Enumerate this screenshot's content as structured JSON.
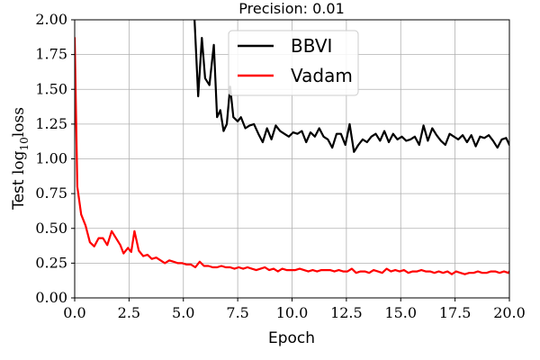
{
  "chart_data": {
    "type": "line",
    "title": "Precision: 0.01",
    "xlabel": "Epoch",
    "ylabel": {
      "prefix": "Test ",
      "log_base": "log",
      "log_sub": "10",
      "suffix": "loss"
    },
    "xlim": [
      0.0,
      20.0
    ],
    "ylim": [
      0.0,
      2.0
    ],
    "xticks": [
      0.0,
      2.5,
      5.0,
      7.5,
      10.0,
      12.5,
      15.0,
      17.5,
      20.0
    ],
    "xtick_labels": [
      "0.0",
      "2.5",
      "5.0",
      "7.5",
      "10.0",
      "12.5",
      "15.0",
      "17.5",
      "20.0"
    ],
    "yticks": [
      0.0,
      0.25,
      0.5,
      0.75,
      1.0,
      1.25,
      1.5,
      1.75,
      2.0
    ],
    "ytick_labels": [
      "0.00",
      "0.25",
      "0.50",
      "0.75",
      "1.00",
      "1.25",
      "1.50",
      "1.75",
      "2.00"
    ],
    "grid": true,
    "legend_position": "top-center",
    "series": [
      {
        "name": "BBVI",
        "color": "#000000",
        "x": [
          5.5,
          5.68,
          5.85,
          6.0,
          6.2,
          6.4,
          6.55,
          6.7,
          6.85,
          7.0,
          7.15,
          7.3,
          7.5,
          7.65,
          7.85,
          8.05,
          8.25,
          8.45,
          8.65,
          8.85,
          9.05,
          9.25,
          9.45,
          9.65,
          9.85,
          10.05,
          10.25,
          10.45,
          10.65,
          10.85,
          11.05,
          11.25,
          11.45,
          11.65,
          11.85,
          12.05,
          12.25,
          12.45,
          12.65,
          12.85,
          13.05,
          13.25,
          13.45,
          13.65,
          13.85,
          14.05,
          14.25,
          14.45,
          14.65,
          14.85,
          15.05,
          15.25,
          15.45,
          15.65,
          15.85,
          16.05,
          16.25,
          16.45,
          16.65,
          16.85,
          17.05,
          17.25,
          17.45,
          17.65,
          17.85,
          18.05,
          18.25,
          18.45,
          18.65,
          18.85,
          19.05,
          19.25,
          19.45,
          19.65,
          19.85,
          20.0
        ],
        "y": [
          2.05,
          1.45,
          1.87,
          1.58,
          1.53,
          1.82,
          1.3,
          1.35,
          1.2,
          1.25,
          1.52,
          1.3,
          1.27,
          1.3,
          1.22,
          1.24,
          1.25,
          1.18,
          1.12,
          1.22,
          1.14,
          1.24,
          1.2,
          1.18,
          1.16,
          1.19,
          1.18,
          1.2,
          1.12,
          1.19,
          1.16,
          1.22,
          1.16,
          1.14,
          1.08,
          1.18,
          1.18,
          1.1,
          1.25,
          1.05,
          1.1,
          1.14,
          1.12,
          1.16,
          1.18,
          1.13,
          1.2,
          1.12,
          1.18,
          1.14,
          1.16,
          1.13,
          1.14,
          1.16,
          1.1,
          1.24,
          1.13,
          1.22,
          1.17,
          1.13,
          1.1,
          1.18,
          1.16,
          1.14,
          1.17,
          1.12,
          1.17,
          1.09,
          1.16,
          1.15,
          1.17,
          1.13,
          1.08,
          1.14,
          1.15,
          1.1
        ]
      },
      {
        "name": "Vadam",
        "color": "#ff0000",
        "x": [
          0.0,
          0.12,
          0.3,
          0.5,
          0.7,
          0.9,
          1.1,
          1.3,
          1.5,
          1.7,
          1.9,
          2.1,
          2.25,
          2.45,
          2.6,
          2.75,
          2.95,
          3.15,
          3.35,
          3.55,
          3.75,
          3.95,
          4.15,
          4.35,
          4.55,
          4.75,
          4.95,
          5.15,
          5.35,
          5.55,
          5.75,
          5.95,
          6.15,
          6.35,
          6.55,
          6.75,
          6.95,
          7.15,
          7.35,
          7.55,
          7.75,
          7.95,
          8.15,
          8.35,
          8.55,
          8.75,
          8.95,
          9.15,
          9.35,
          9.55,
          9.75,
          9.95,
          10.15,
          10.35,
          10.55,
          10.75,
          10.95,
          11.15,
          11.35,
          11.55,
          11.75,
          11.95,
          12.15,
          12.35,
          12.55,
          12.75,
          12.95,
          13.15,
          13.35,
          13.55,
          13.75,
          13.95,
          14.15,
          14.35,
          14.55,
          14.75,
          14.95,
          15.15,
          15.35,
          15.55,
          15.75,
          15.95,
          16.15,
          16.35,
          16.55,
          16.75,
          16.95,
          17.15,
          17.35,
          17.55,
          17.75,
          17.95,
          18.15,
          18.35,
          18.55,
          18.75,
          18.95,
          19.15,
          19.35,
          19.55,
          19.75,
          19.95,
          20.0
        ],
        "y": [
          1.87,
          0.8,
          0.6,
          0.52,
          0.4,
          0.37,
          0.43,
          0.43,
          0.38,
          0.48,
          0.43,
          0.38,
          0.32,
          0.36,
          0.33,
          0.48,
          0.34,
          0.3,
          0.31,
          0.28,
          0.29,
          0.27,
          0.25,
          0.27,
          0.26,
          0.25,
          0.25,
          0.24,
          0.24,
          0.22,
          0.26,
          0.23,
          0.23,
          0.22,
          0.22,
          0.23,
          0.22,
          0.22,
          0.21,
          0.22,
          0.21,
          0.22,
          0.21,
          0.2,
          0.21,
          0.22,
          0.2,
          0.21,
          0.19,
          0.21,
          0.2,
          0.2,
          0.2,
          0.21,
          0.2,
          0.19,
          0.2,
          0.19,
          0.2,
          0.2,
          0.2,
          0.19,
          0.2,
          0.19,
          0.19,
          0.21,
          0.18,
          0.19,
          0.19,
          0.18,
          0.2,
          0.19,
          0.18,
          0.21,
          0.19,
          0.2,
          0.19,
          0.2,
          0.18,
          0.19,
          0.19,
          0.2,
          0.19,
          0.19,
          0.18,
          0.19,
          0.18,
          0.19,
          0.17,
          0.19,
          0.18,
          0.17,
          0.18,
          0.18,
          0.19,
          0.18,
          0.18,
          0.19,
          0.19,
          0.18,
          0.19,
          0.18,
          0.19
        ]
      }
    ]
  }
}
